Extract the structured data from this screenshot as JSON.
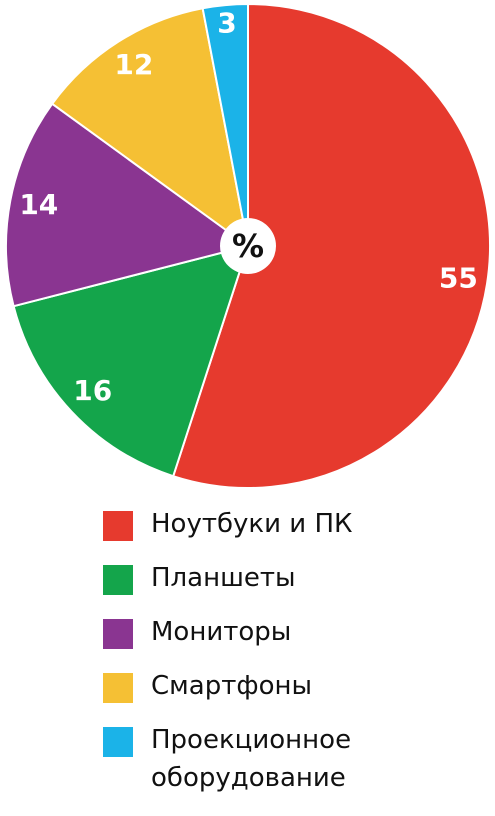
{
  "chart_data": {
    "type": "pie",
    "center_label": "%",
    "categories": [
      "Ноутбуки и ПК",
      "Планшеты",
      "Мониторы",
      "Смартфоны",
      "Проекционное оборудование"
    ],
    "values": [
      55,
      16,
      14,
      12,
      3
    ],
    "colors": [
      "#e63a2e",
      "#14a54b",
      "#8a3591",
      "#f5c034",
      "#1bb3e8"
    ]
  }
}
